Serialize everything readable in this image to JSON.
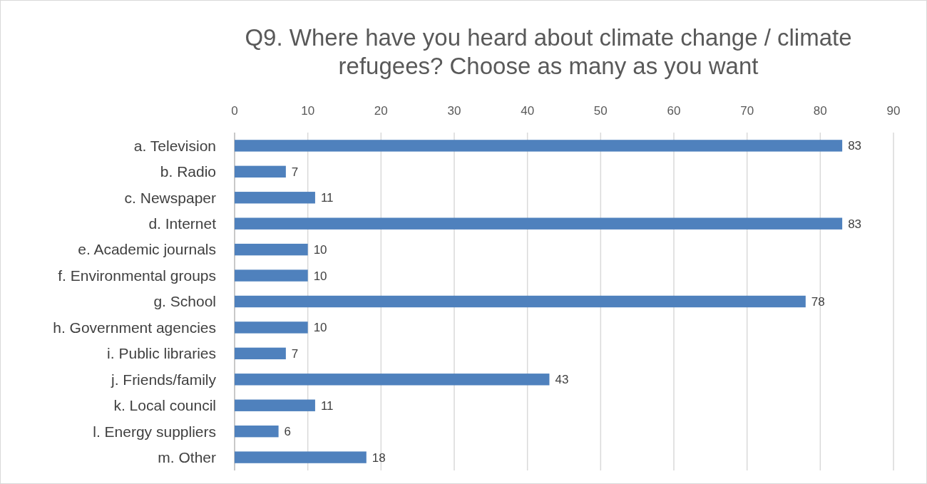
{
  "chart_data": {
    "type": "bar",
    "orientation": "horizontal",
    "title": "Q9. Where have you heard about climate change / climate refugees? Choose as many as you want",
    "categories": [
      "a. Television",
      "b. Radio",
      "c. Newspaper",
      "d. Internet",
      "e. Academic journals",
      "f. Environmental groups",
      "g. School",
      "h. Government agencies",
      "i. Public libraries",
      "j. Friends/family",
      "k. Local council",
      "l. Energy suppliers",
      "m. Other"
    ],
    "values": [
      83,
      7,
      11,
      83,
      10,
      10,
      78,
      10,
      7,
      43,
      11,
      6,
      18
    ],
    "color": "#4f81bd",
    "xlim": [
      0,
      90
    ],
    "xticks": [
      0,
      10,
      20,
      30,
      40,
      50,
      60,
      70,
      80,
      90
    ],
    "grid": "x",
    "data_labels": true
  }
}
